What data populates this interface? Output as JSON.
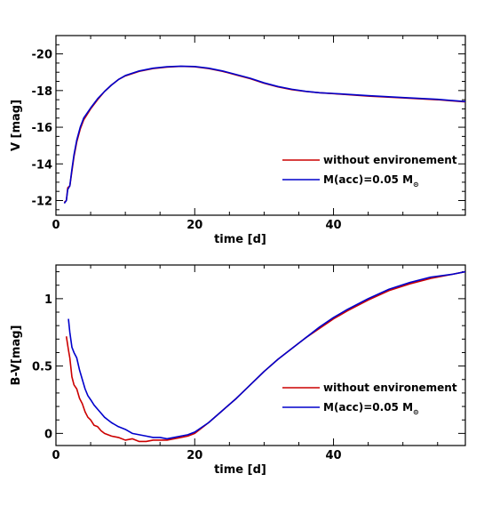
{
  "chart_data": [
    {
      "type": "line",
      "xlabel": "time [d]",
      "ylabel": "V [mag]",
      "xlim": [
        0,
        59
      ],
      "ylim": [
        -11.2,
        -21.0
      ],
      "x_major_ticks": [
        0,
        20,
        40
      ],
      "y_major_ticks": [
        -12,
        -14,
        -16,
        -18,
        -20
      ],
      "x_tick_labels": [
        "0",
        "20",
        "40"
      ],
      "y_tick_labels": [
        "-12",
        "-14",
        "-16",
        "-18",
        "-20"
      ],
      "legend_position": "center-right",
      "series": [
        {
          "name": "without environement",
          "color": "#cc0000",
          "x": [
            1.2,
            1.5,
            1.7,
            2.0,
            2.3,
            2.6,
            3.0,
            3.5,
            4.0,
            5.0,
            6.0,
            7.0,
            8.0,
            9.0,
            10.0,
            12.0,
            14.0,
            16.0,
            18.0,
            20.0,
            22.0,
            24.0,
            26.0,
            28.0,
            30.0,
            32.0,
            34.0,
            36.0,
            38.0,
            40.0,
            45.0,
            50.0,
            55.0,
            59.0
          ],
          "y": [
            -11.9,
            -12.0,
            -12.7,
            -12.8,
            -13.6,
            -14.4,
            -15.2,
            -15.9,
            -16.4,
            -17.0,
            -17.5,
            -17.95,
            -18.3,
            -18.6,
            -18.8,
            -19.05,
            -19.2,
            -19.28,
            -19.32,
            -19.3,
            -19.2,
            -19.05,
            -18.85,
            -18.65,
            -18.4,
            -18.2,
            -18.05,
            -17.95,
            -17.88,
            -17.83,
            -17.7,
            -17.6,
            -17.5,
            -17.38
          ]
        },
        {
          "name": "M(acc)=0.05 M",
          "name_subscript": "⊙",
          "color": "#0000cc",
          "x": [
            1.2,
            1.5,
            1.7,
            2.0,
            2.3,
            2.6,
            3.0,
            3.5,
            4.0,
            5.0,
            6.0,
            7.0,
            8.0,
            9.0,
            10.0,
            12.0,
            14.0,
            16.0,
            18.0,
            20.0,
            22.0,
            24.0,
            26.0,
            28.0,
            30.0,
            32.0,
            34.0,
            36.0,
            38.0,
            40.0,
            45.0,
            50.0,
            55.0,
            59.0
          ],
          "y": [
            -11.85,
            -12.0,
            -12.6,
            -12.8,
            -13.7,
            -14.5,
            -15.3,
            -16.0,
            -16.5,
            -17.05,
            -17.55,
            -17.95,
            -18.3,
            -18.6,
            -18.82,
            -19.07,
            -19.22,
            -19.3,
            -19.33,
            -19.31,
            -19.22,
            -19.07,
            -18.87,
            -18.67,
            -18.42,
            -18.22,
            -18.07,
            -17.96,
            -17.88,
            -17.84,
            -17.72,
            -17.62,
            -17.52,
            -17.4
          ]
        }
      ]
    },
    {
      "type": "line",
      "xlabel": "time [d]",
      "ylabel": "B-V[mag]",
      "xlim": [
        0,
        59
      ],
      "ylim": [
        -0.09,
        1.25
      ],
      "x_major_ticks": [
        0,
        20,
        40
      ],
      "y_major_ticks": [
        0,
        0.5,
        1
      ],
      "x_tick_labels": [
        "0",
        "20",
        "40"
      ],
      "y_tick_labels": [
        "0",
        "0.5",
        "1"
      ],
      "legend_position": "center-right",
      "series": [
        {
          "name": "without environement",
          "color": "#cc0000",
          "x": [
            1.5,
            1.8,
            2.0,
            2.3,
            2.6,
            3.0,
            3.4,
            3.8,
            4.2,
            4.6,
            5.0,
            5.5,
            6.0,
            6.5,
            7.0,
            7.5,
            8.0,
            9.0,
            10.0,
            11.0,
            12.0,
            13.0,
            14.0,
            15.0,
            16.0,
            17.0,
            18.0,
            19.0,
            20.0,
            22.0,
            24.0,
            26.0,
            28.0,
            30.0,
            32.0,
            34.0,
            36.0,
            38.0,
            40.0,
            42.0,
            45.0,
            48.0,
            51.0,
            54.0,
            57.0,
            59.0
          ],
          "y": [
            0.72,
            0.62,
            0.56,
            0.42,
            0.36,
            0.33,
            0.26,
            0.22,
            0.16,
            0.12,
            0.1,
            0.06,
            0.05,
            0.02,
            0.0,
            -0.01,
            -0.02,
            -0.03,
            -0.05,
            -0.04,
            -0.06,
            -0.06,
            -0.05,
            -0.05,
            -0.05,
            -0.04,
            -0.03,
            -0.02,
            0.0,
            0.08,
            0.17,
            0.26,
            0.36,
            0.46,
            0.55,
            0.63,
            0.71,
            0.78,
            0.85,
            0.91,
            0.99,
            1.06,
            1.11,
            1.15,
            1.18,
            1.2
          ]
        },
        {
          "name": "M(acc)=0.05 M",
          "name_subscript": "⊙",
          "color": "#0000cc",
          "x": [
            1.8,
            2.0,
            2.3,
            2.6,
            3.0,
            3.4,
            3.8,
            4.2,
            4.6,
            5.0,
            5.5,
            6.0,
            6.5,
            7.0,
            7.5,
            8.0,
            9.0,
            10.0,
            11.0,
            12.0,
            13.0,
            14.0,
            15.0,
            16.0,
            17.0,
            18.0,
            19.0,
            20.0,
            22.0,
            24.0,
            26.0,
            28.0,
            30.0,
            32.0,
            34.0,
            36.0,
            38.0,
            40.0,
            42.0,
            45.0,
            48.0,
            51.0,
            54.0,
            57.0,
            59.0
          ],
          "y": [
            0.85,
            0.75,
            0.64,
            0.6,
            0.56,
            0.47,
            0.4,
            0.33,
            0.28,
            0.25,
            0.21,
            0.18,
            0.15,
            0.12,
            0.1,
            0.08,
            0.05,
            0.03,
            0.0,
            -0.01,
            -0.02,
            -0.03,
            -0.03,
            -0.04,
            -0.03,
            -0.02,
            -0.01,
            0.01,
            0.08,
            0.17,
            0.26,
            0.36,
            0.46,
            0.55,
            0.63,
            0.71,
            0.79,
            0.86,
            0.92,
            1.0,
            1.07,
            1.12,
            1.16,
            1.18,
            1.2
          ]
        }
      ]
    }
  ]
}
